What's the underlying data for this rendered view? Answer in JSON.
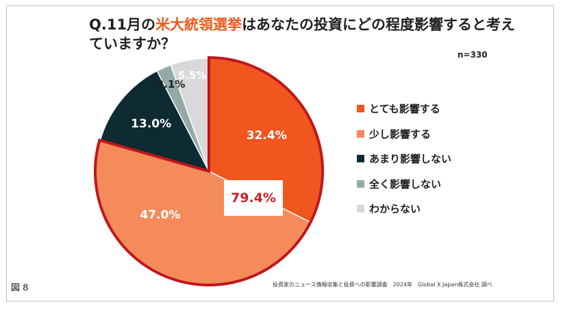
{
  "title": {
    "prefix": "Q.11月の",
    "highlight": "米大統領選挙",
    "suffix": "はあなたの投資にどの程度影響すると考えていますか？"
  },
  "sample_size": "n=330",
  "callout": "79.4%",
  "source": "投資家のニュース情報収集と投資への影響調査　2024年　Global X Japan株式会社 調べ",
  "figure_label": "図 8",
  "colors": {
    "highlight": "#ee5a1c",
    "callout_text": "#d0202a",
    "callout_border": "#c0161c"
  },
  "chart_data": {
    "type": "pie",
    "title": "Q.11月の米大統領選挙はあなたの投資にどの程度影響すると考えていますか？",
    "start_direction": "top, clockwise",
    "slices": [
      {
        "label": "とても影響する",
        "value": 32.4,
        "display": "32.4%",
        "color": "#f0561d",
        "label_color": "#ffffff"
      },
      {
        "label": "少し影響する",
        "value": 47.0,
        "display": "47.0%",
        "color": "#f58a5a",
        "label_color": "#ffffff"
      },
      {
        "label": "あまり影響しない",
        "value": 13.0,
        "display": "13.0%",
        "color": "#0e2a33",
        "label_color": "#ffffff"
      },
      {
        "label": "全く影響しない",
        "value": 2.1,
        "display": "2.1%",
        "color": "#94aaa9",
        "label_color": "#1f1f1f"
      },
      {
        "label": "わからない",
        "value": 5.5,
        "display": "5.5%",
        "color": "#d9d9d9",
        "label_color": "#ffffff"
      }
    ],
    "highlight_group": {
      "slices": [
        0,
        1
      ],
      "total": 79.4,
      "display": "79.4%"
    },
    "legend_position": "right"
  }
}
